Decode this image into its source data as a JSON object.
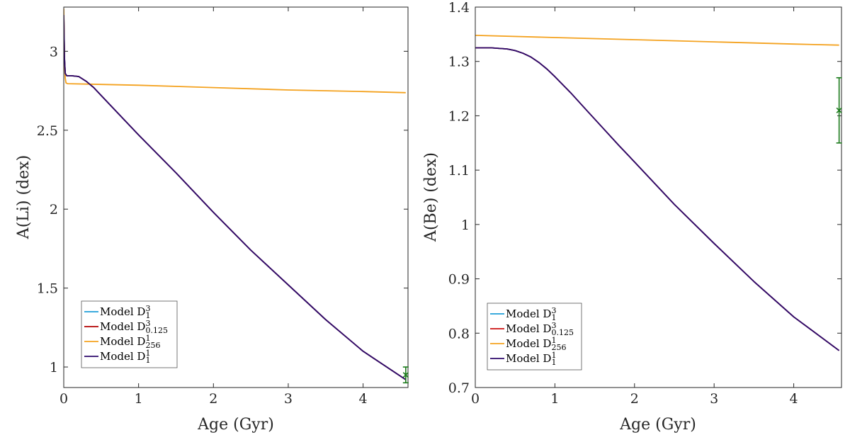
{
  "chart_data": [
    {
      "type": "line",
      "title": "",
      "xlabel": "Age (Gyr)",
      "ylabel": "A(Li) (dex)",
      "xlim": [
        0,
        4.6
      ],
      "ylim": [
        0.87,
        3.28
      ],
      "xticks": [
        0,
        1,
        2,
        3,
        4
      ],
      "xtick_labels": [
        "0",
        "1",
        "2",
        "3",
        "4"
      ],
      "yticks": [
        1,
        1.5,
        2,
        2.5,
        3
      ],
      "ytick_labels": [
        "1",
        "1.5",
        "2",
        "2.5",
        "3"
      ],
      "grid": false,
      "legend_position": "bottom-left",
      "series": [
        {
          "name": "Model D",
          "sup": "3",
          "sub": "1",
          "color": "#1f9ed8",
          "x": [
            0,
            0.01,
            0.02,
            0.04,
            0.1,
            0.2,
            0.3,
            0.4,
            0.5,
            0.7,
            1.0,
            1.5,
            2.0,
            2.5,
            3.0,
            3.5,
            4.0,
            4.57
          ],
          "y": [
            3.23,
            2.95,
            2.86,
            2.845,
            2.845,
            2.84,
            2.81,
            2.77,
            2.72,
            2.62,
            2.47,
            2.23,
            1.98,
            1.74,
            1.52,
            1.3,
            1.1,
            0.92
          ]
        },
        {
          "name": "Model D",
          "sup": "3",
          "sub": "0.125",
          "color": "#b30000",
          "x": [
            0,
            0.01,
            0.02,
            0.04,
            0.1,
            0.2,
            0.3,
            0.4,
            0.5,
            0.7,
            1.0,
            1.5,
            2.0,
            2.5,
            3.0,
            3.5,
            4.0,
            4.57
          ],
          "y": [
            3.23,
            2.95,
            2.86,
            2.845,
            2.845,
            2.84,
            2.81,
            2.77,
            2.72,
            2.62,
            2.47,
            2.23,
            1.98,
            1.74,
            1.52,
            1.3,
            1.1,
            0.92
          ]
        },
        {
          "name": "Model D",
          "sup": "1",
          "sub": "256",
          "color": "#f4a21f",
          "x": [
            0,
            0.01,
            0.02,
            0.03,
            0.05,
            1.0,
            2.0,
            3.0,
            4.0,
            4.57
          ],
          "y": [
            3.27,
            2.92,
            2.83,
            2.8,
            2.795,
            2.785,
            2.77,
            2.755,
            2.745,
            2.738
          ]
        },
        {
          "name": "Model D",
          "sup": "1",
          "sub": "1",
          "color": "#2e0a6b",
          "x": [
            0,
            0.01,
            0.02,
            0.04,
            0.1,
            0.2,
            0.3,
            0.4,
            0.5,
            0.7,
            1.0,
            1.5,
            2.0,
            2.5,
            3.0,
            3.5,
            4.0,
            4.57
          ],
          "y": [
            3.23,
            2.95,
            2.86,
            2.845,
            2.845,
            2.84,
            2.81,
            2.77,
            2.72,
            2.62,
            2.47,
            2.23,
            1.98,
            1.74,
            1.52,
            1.3,
            1.1,
            0.92
          ]
        }
      ],
      "observation": {
        "x": 4.57,
        "y": 0.95,
        "yerr": 0.05,
        "color": "#1a7a1a"
      }
    },
    {
      "type": "line",
      "title": "",
      "xlabel": "Age (Gyr)",
      "ylabel": "A(Be) (dex)",
      "xlim": [
        0,
        4.6
      ],
      "ylim": [
        0.7,
        1.4
      ],
      "xticks": [
        0,
        1,
        2,
        3,
        4
      ],
      "xtick_labels": [
        "0",
        "1",
        "2",
        "3",
        "4"
      ],
      "yticks": [
        0.7,
        0.8,
        0.9,
        1,
        1.1,
        1.2,
        1.3,
        1.4
      ],
      "ytick_labels": [
        "0.7",
        "0.8",
        "0.9",
        "1",
        "1.1",
        "1.2",
        "1.3",
        "1.4"
      ],
      "grid": false,
      "legend_position": "bottom-left",
      "series": [
        {
          "name": "Model D",
          "sup": "3",
          "sub": "1",
          "color": "#1f9ed8",
          "x": [
            0,
            0.2,
            0.4,
            0.5,
            0.6,
            0.7,
            0.8,
            0.9,
            1.0,
            1.2,
            1.4,
            1.6,
            1.8,
            2.0,
            2.5,
            3.0,
            3.5,
            4.0,
            4.57
          ],
          "y": [
            1.325,
            1.325,
            1.323,
            1.32,
            1.315,
            1.308,
            1.298,
            1.286,
            1.272,
            1.242,
            1.21,
            1.178,
            1.146,
            1.115,
            1.037,
            0.965,
            0.895,
            0.83,
            0.768
          ]
        },
        {
          "name": "Model D",
          "sup": "3",
          "sub": "0.125",
          "color": "#cc1010",
          "x": [
            0,
            0.2,
            0.4,
            0.5,
            0.6,
            0.7,
            0.8,
            0.9,
            1.0,
            1.2,
            1.4,
            1.6,
            1.8,
            2.0,
            2.5,
            3.0,
            3.5,
            4.0,
            4.57
          ],
          "y": [
            1.325,
            1.325,
            1.323,
            1.32,
            1.315,
            1.308,
            1.298,
            1.286,
            1.272,
            1.242,
            1.21,
            1.178,
            1.146,
            1.115,
            1.037,
            0.965,
            0.895,
            0.83,
            0.768
          ]
        },
        {
          "name": "Model D",
          "sup": "1",
          "sub": "256",
          "color": "#f4a21f",
          "x": [
            0,
            1,
            2,
            3,
            4,
            4.57
          ],
          "y": [
            1.348,
            1.344,
            1.34,
            1.336,
            1.332,
            1.33
          ]
        },
        {
          "name": "Model D",
          "sup": "1",
          "sub": "1",
          "color": "#2e0a6b",
          "x": [
            0,
            0.2,
            0.4,
            0.5,
            0.6,
            0.7,
            0.8,
            0.9,
            1.0,
            1.2,
            1.4,
            1.6,
            1.8,
            2.0,
            2.5,
            3.0,
            3.5,
            4.0,
            4.57
          ],
          "y": [
            1.325,
            1.325,
            1.323,
            1.32,
            1.315,
            1.308,
            1.298,
            1.286,
            1.272,
            1.242,
            1.21,
            1.178,
            1.146,
            1.115,
            1.037,
            0.965,
            0.895,
            0.83,
            0.768
          ]
        }
      ],
      "observation": {
        "x": 4.57,
        "y": 1.21,
        "yerr": 0.06,
        "color": "#1a7a1a"
      }
    }
  ]
}
